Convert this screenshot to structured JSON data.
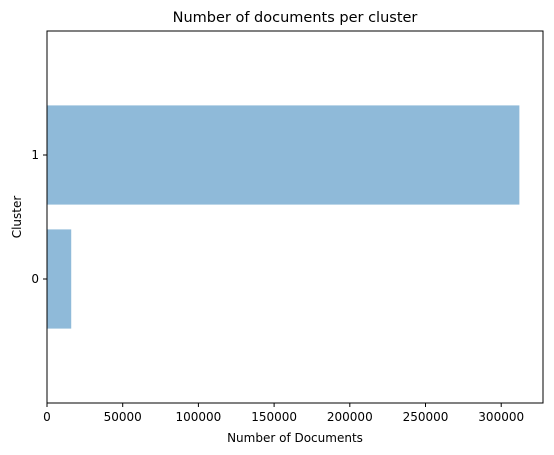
{
  "chart_data": {
    "type": "bar",
    "orientation": "horizontal",
    "title": "Number of documents per cluster",
    "xlabel": "Number of Documents",
    "ylabel": "Cluster",
    "categories": [
      "0",
      "1"
    ],
    "values": [
      16000,
      312000
    ],
    "xlim": [
      0,
      327600
    ],
    "xticks": [
      0,
      50000,
      100000,
      150000,
      200000,
      250000,
      300000
    ],
    "bar_color": "#8fbad9",
    "grid": false,
    "legend": "none"
  }
}
